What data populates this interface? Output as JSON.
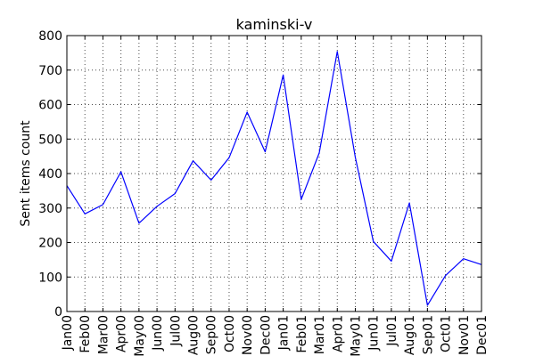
{
  "chart_data": {
    "type": "line",
    "title": "kaminski-v",
    "xlabel": "",
    "ylabel": "Sent items count",
    "ylim": [
      0,
      800
    ],
    "yticks": [
      "0",
      "100",
      "200",
      "300",
      "400",
      "500",
      "600",
      "700",
      "800"
    ],
    "grid": true,
    "categories": [
      "Jan00",
      "Feb00",
      "Mar00",
      "Apr00",
      "May00",
      "Jun00",
      "Jul00",
      "Aug00",
      "Sep00",
      "Oct00",
      "Nov00",
      "Dec00",
      "Jan01",
      "Feb01",
      "Mar01",
      "Apr01",
      "May01",
      "Jun01",
      "Jul01",
      "Aug01",
      "Sep01",
      "Oct01",
      "Nov01",
      "Dec01"
    ],
    "series": [
      {
        "color": "#0000ff",
        "values": [
          365,
          283,
          310,
          405,
          256,
          305,
          342,
          437,
          381,
          446,
          578,
          463,
          686,
          325,
          460,
          754,
          447,
          203,
          146,
          315,
          18,
          104,
          153,
          136
        ]
      }
    ]
  }
}
